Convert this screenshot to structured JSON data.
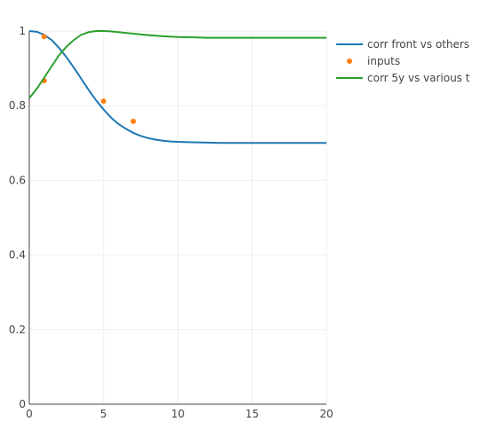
{
  "chart_data": {
    "type": "line",
    "xlim": [
      0,
      20
    ],
    "ylim": [
      0,
      1
    ],
    "x_ticks": [
      0,
      5,
      10,
      15,
      20
    ],
    "y_ticks": [
      0,
      0.2,
      0.4,
      0.6,
      0.8,
      1
    ],
    "x_tick_labels": [
      "0",
      "5",
      "10",
      "15",
      "20"
    ],
    "y_tick_labels": [
      "0",
      "0.2",
      "0.4",
      "0.6",
      "0.8",
      "1"
    ],
    "grid": true,
    "legend_position": "top-right",
    "series": [
      {
        "name": "corr front vs others",
        "mode": "line",
        "color": "#1f77b4",
        "x": [
          0,
          0.5,
          1,
          1.5,
          2,
          2.5,
          3,
          3.5,
          4,
          4.5,
          5,
          5.5,
          6,
          6.5,
          7,
          7.5,
          8,
          8.5,
          9,
          9.5,
          10,
          11,
          12,
          13,
          14,
          15,
          16,
          17,
          18,
          19,
          20
        ],
        "y": [
          1.0,
          0.998,
          0.99,
          0.976,
          0.955,
          0.93,
          0.902,
          0.872,
          0.842,
          0.814,
          0.79,
          0.768,
          0.751,
          0.738,
          0.727,
          0.719,
          0.713,
          0.709,
          0.706,
          0.704,
          0.703,
          0.702,
          0.701,
          0.7,
          0.7,
          0.7,
          0.7,
          0.7,
          0.7,
          0.7,
          0.7
        ]
      },
      {
        "name": "inputs",
        "mode": "markers",
        "color": "#ff7f0e",
        "x": [
          1,
          1,
          5,
          7
        ],
        "y": [
          0.985,
          0.867,
          0.812,
          0.758
        ]
      },
      {
        "name": "corr 5y vs various t",
        "mode": "line",
        "color": "#2ca02c",
        "x": [
          0,
          0.5,
          1,
          1.5,
          2,
          2.5,
          3,
          3.5,
          4,
          4.5,
          5,
          5.5,
          6,
          7,
          8,
          9,
          10,
          11,
          12,
          14,
          16,
          18,
          20
        ],
        "y": [
          0.82,
          0.845,
          0.875,
          0.905,
          0.935,
          0.958,
          0.976,
          0.99,
          0.997,
          1.0,
          1.0,
          0.999,
          0.997,
          0.993,
          0.989,
          0.986,
          0.984,
          0.983,
          0.982,
          0.982,
          0.982,
          0.982,
          0.982
        ]
      }
    ]
  }
}
